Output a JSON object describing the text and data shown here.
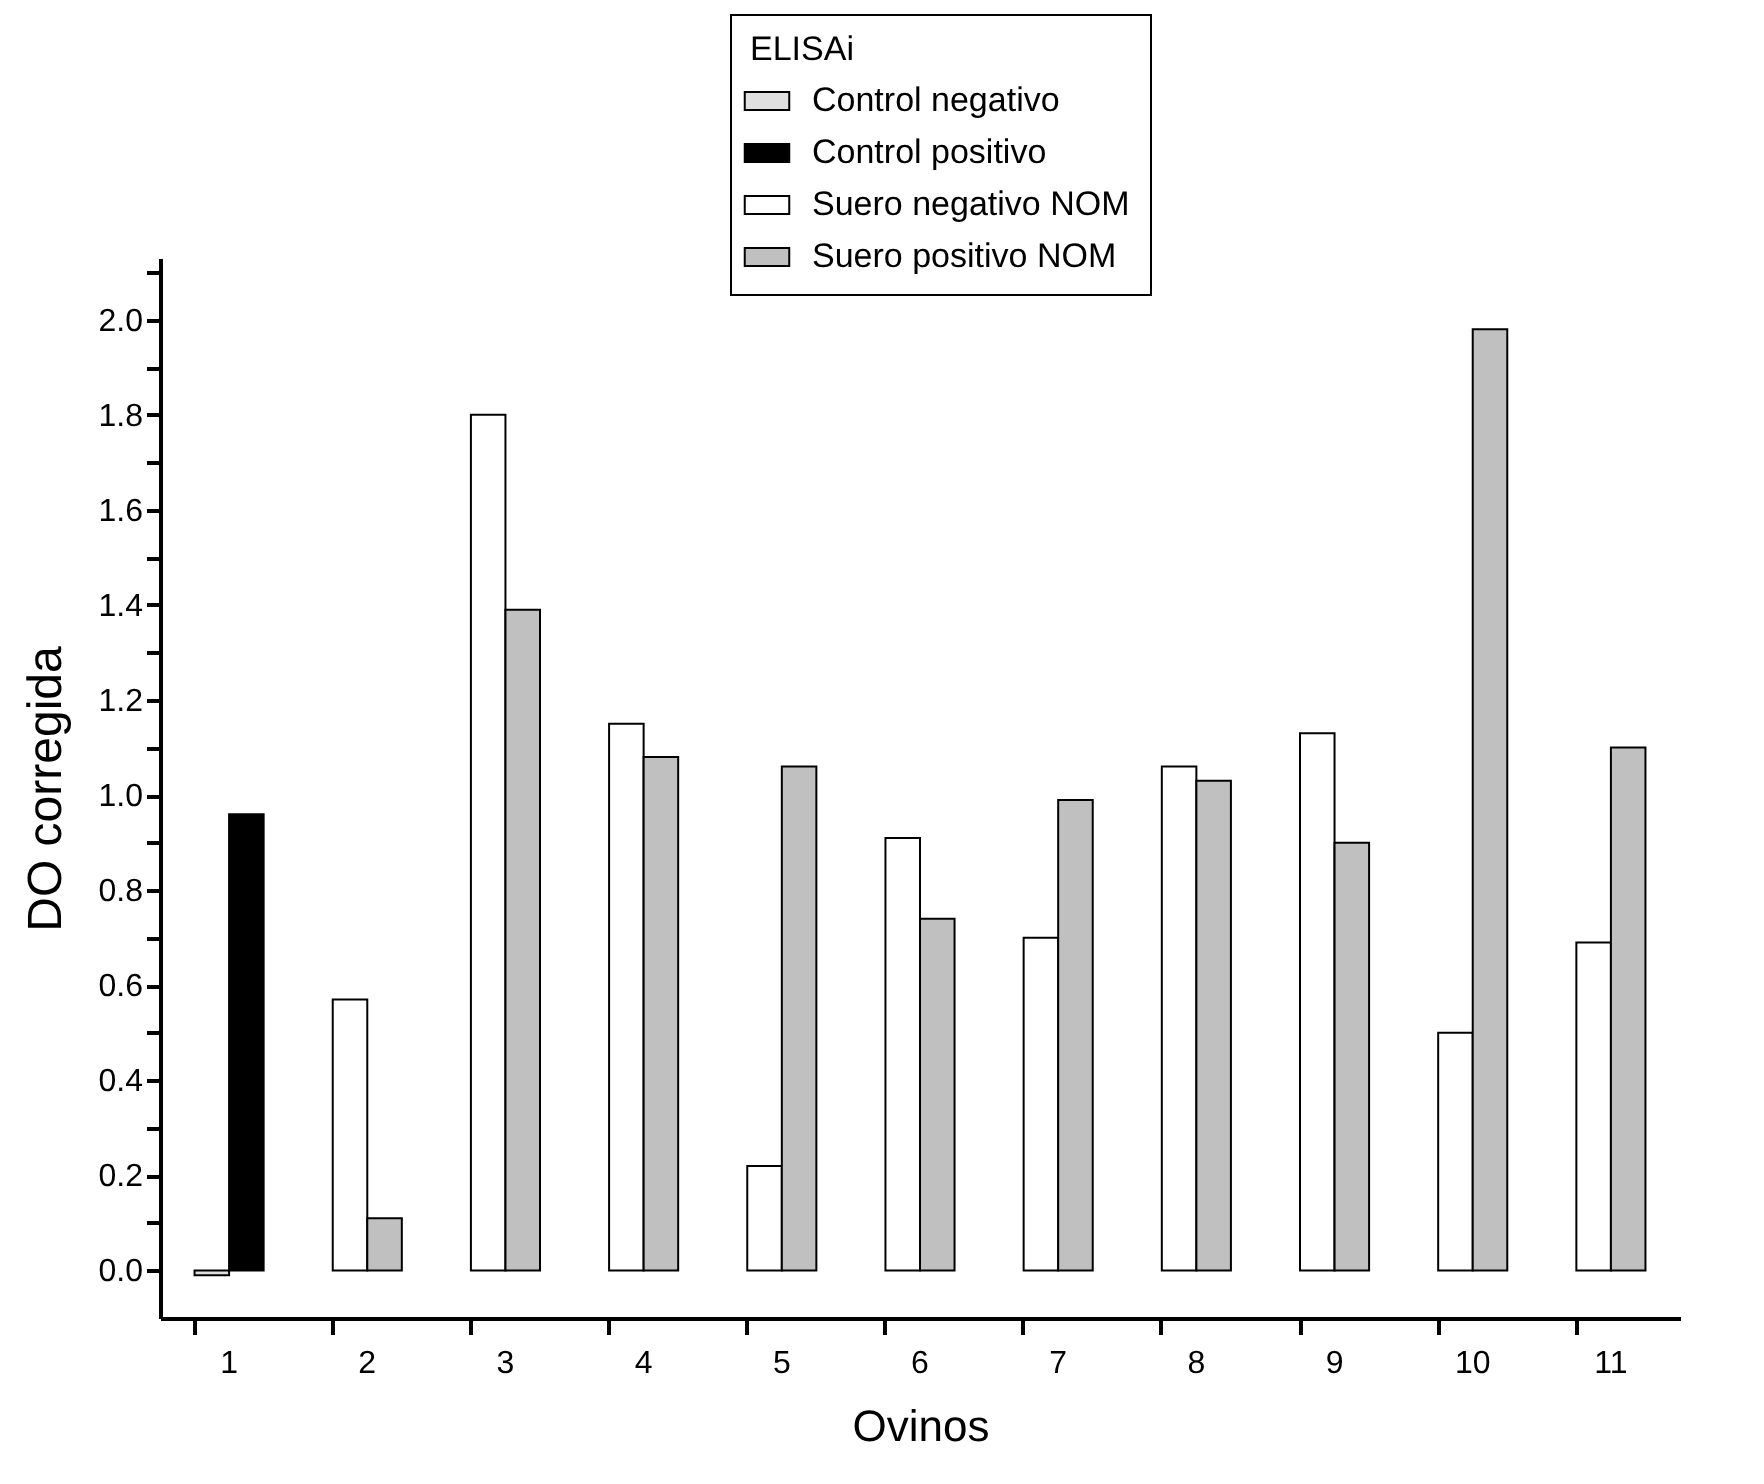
{
  "chart_data": {
    "type": "bar",
    "xlabel": "Ovinos",
    "ylabel": "DO corregida",
    "legend_title": "ELISAi",
    "categories": [
      "1",
      "2",
      "3",
      "4",
      "5",
      "6",
      "7",
      "8",
      "9",
      "10",
      "11"
    ],
    "series": [
      {
        "name": "Control negativo",
        "color": "#e0e0e0",
        "values": [
          -0.01,
          null,
          null,
          null,
          null,
          null,
          null,
          null,
          null,
          null,
          null
        ]
      },
      {
        "name": "Control positivo",
        "color": "#000000",
        "values": [
          0.96,
          null,
          null,
          null,
          null,
          null,
          null,
          null,
          null,
          null,
          null
        ]
      },
      {
        "name": "Suero negativo NOM",
        "color": "#ffffff",
        "values": [
          null,
          0.57,
          1.8,
          1.15,
          0.22,
          0.91,
          0.7,
          1.06,
          1.13,
          0.5,
          0.69
        ]
      },
      {
        "name": "Suero positivo NOM",
        "color": "#c0c0c0",
        "values": [
          null,
          0.11,
          1.39,
          1.08,
          1.06,
          0.74,
          0.99,
          1.03,
          0.9,
          1.98,
          1.1
        ]
      }
    ],
    "ylim": [
      -0.1,
      2.13
    ],
    "yticks": [
      {
        "value": 0,
        "label": "0.0"
      },
      {
        "value": 0.1,
        "label": null
      },
      {
        "value": 0.2,
        "label": "0.2"
      },
      {
        "value": 0.3,
        "label": null
      },
      {
        "value": 0.4,
        "label": "0.4"
      },
      {
        "value": 0.5,
        "label": null
      },
      {
        "value": 0.6,
        "label": "0.6"
      },
      {
        "value": 0.7,
        "label": null
      },
      {
        "value": 0.8,
        "label": "0.8"
      },
      {
        "value": 0.9,
        "label": null
      },
      {
        "value": 1.0,
        "label": "1.0"
      },
      {
        "value": 1.1,
        "label": null
      },
      {
        "value": 1.2,
        "label": "1.2"
      },
      {
        "value": 1.3,
        "label": null
      },
      {
        "value": 1.4,
        "label": "1.4"
      },
      {
        "value": 1.5,
        "label": null
      },
      {
        "value": 1.6,
        "label": "1.6"
      },
      {
        "value": 1.7,
        "label": null
      },
      {
        "value": 1.8,
        "label": "1.8"
      },
      {
        "value": 1.9,
        "label": null
      },
      {
        "value": 2.0,
        "label": "2.0"
      },
      {
        "value": 2.1,
        "label": null
      }
    ],
    "grid": false,
    "legend": "top right"
  }
}
